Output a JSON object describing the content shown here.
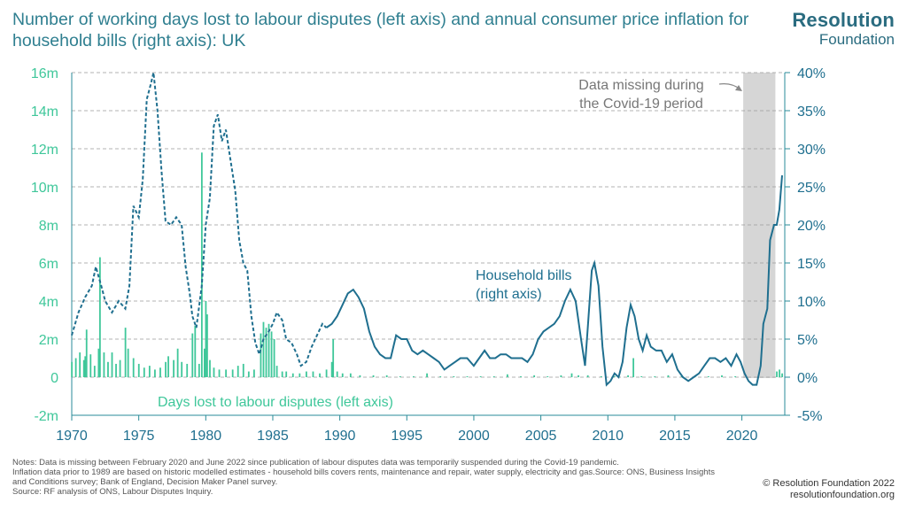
{
  "title": "Number of working days lost to labour disputes (left axis) and annual consumer price inflation for household bills (right axis): UK",
  "logo": {
    "line1": "Resolution",
    "line2": "Foundation"
  },
  "notes": [
    "Notes: Data is missing between February 2020 and June 2022 since publication of labour disputes data was temporarily suspended during the Covid-19 pandemic.",
    "Inflation data prior to 1989 are based on historic modelled estimates - household bills covers rents, maintenance and repair, water supply, electricity and gas.Source: ONS, Business Insights and Conditions survey; Bank of England, Decision Maker Panel survey.",
    "Source: RF analysis of ONS, Labour Disputes Inquiry."
  ],
  "credits": {
    "copyright": "© Resolution Foundation 2022",
    "url": "resolutionfoundation.org"
  },
  "colors": {
    "title": "#2f7f90",
    "bills": "#1f6f8f",
    "days": "#3fc79a",
    "axis": "#2a8b98",
    "covid": "#d6d6d6"
  },
  "chart_data": {
    "type": "bar+line",
    "x_ticks": [
      "1970",
      "1975",
      "1980",
      "1985",
      "1990",
      "1995",
      "2000",
      "2005",
      "2010",
      "2015",
      "2020"
    ],
    "x_range": [
      1970,
      2023.2
    ],
    "left_ticks": [
      "-2m",
      "0",
      "2m",
      "4m",
      "6m",
      "8m",
      "10m",
      "12m",
      "14m",
      "16m"
    ],
    "left_range": [
      -2,
      16
    ],
    "right_ticks": [
      "-5%",
      "0%",
      "5%",
      "10%",
      "15%",
      "20%",
      "25%",
      "30%",
      "35%",
      "40%"
    ],
    "right_range": [
      -5,
      40
    ],
    "grid": true,
    "covid_band": {
      "start": 2020.1,
      "end": 2022.5,
      "label_line1": "Data missing during",
      "label_line2": "the Covid-19 period"
    },
    "series": [
      {
        "name": "Household bills (right axis)",
        "label_line1": "Household bills",
        "label_line2": "(right axis)",
        "axis": "right",
        "style": "dashed_until_1989_then_solid",
        "solid_from": 1989,
        "points": [
          [
            1970.0,
            5.5
          ],
          [
            1970.5,
            8.5
          ],
          [
            1971.0,
            10.5
          ],
          [
            1971.5,
            12
          ],
          [
            1971.8,
            14.5
          ],
          [
            1972.2,
            12
          ],
          [
            1972.5,
            10
          ],
          [
            1973.0,
            8.5
          ],
          [
            1973.5,
            10
          ],
          [
            1974.0,
            9
          ],
          [
            1974.3,
            12
          ],
          [
            1974.6,
            22.5
          ],
          [
            1975.0,
            21
          ],
          [
            1975.3,
            26
          ],
          [
            1975.6,
            36.5
          ],
          [
            1975.9,
            38.5
          ],
          [
            1976.1,
            40
          ],
          [
            1976.4,
            35
          ],
          [
            1976.7,
            27
          ],
          [
            1977.0,
            20.5
          ],
          [
            1977.4,
            20
          ],
          [
            1977.8,
            21
          ],
          [
            1978.2,
            20
          ],
          [
            1978.5,
            14.5
          ],
          [
            1978.8,
            11
          ],
          [
            1979.0,
            8
          ],
          [
            1979.3,
            6.5
          ],
          [
            1979.7,
            12
          ],
          [
            1980.0,
            20
          ],
          [
            1980.3,
            23.5
          ],
          [
            1980.6,
            33
          ],
          [
            1980.9,
            34.5
          ],
          [
            1981.2,
            31
          ],
          [
            1981.5,
            32.5
          ],
          [
            1981.8,
            29
          ],
          [
            1982.2,
            24.5
          ],
          [
            1982.5,
            18
          ],
          [
            1982.8,
            15
          ],
          [
            1983.1,
            14
          ],
          [
            1983.4,
            8
          ],
          [
            1983.7,
            4.5
          ],
          [
            1984.0,
            3
          ],
          [
            1984.3,
            5
          ],
          [
            1984.7,
            6
          ],
          [
            1985.0,
            7
          ],
          [
            1985.3,
            8.5
          ],
          [
            1985.7,
            7.5
          ],
          [
            1986.0,
            5
          ],
          [
            1986.4,
            4.5
          ],
          [
            1986.8,
            3
          ],
          [
            1987.1,
            1.5
          ],
          [
            1987.5,
            2
          ],
          [
            1987.9,
            4
          ],
          [
            1988.3,
            5.5
          ],
          [
            1988.7,
            7
          ],
          [
            1989.0,
            6.5
          ],
          [
            1989.4,
            7
          ],
          [
            1989.8,
            8
          ],
          [
            1990.2,
            9.5
          ],
          [
            1990.6,
            11
          ],
          [
            1991.0,
            11.5
          ],
          [
            1991.4,
            10.5
          ],
          [
            1991.8,
            9
          ],
          [
            1992.2,
            6
          ],
          [
            1992.6,
            4
          ],
          [
            1993.0,
            3
          ],
          [
            1993.4,
            2.5
          ],
          [
            1993.8,
            2.5
          ],
          [
            1994.2,
            5.5
          ],
          [
            1994.6,
            5
          ],
          [
            1995.0,
            5
          ],
          [
            1995.4,
            3.5
          ],
          [
            1995.8,
            3
          ],
          [
            1996.2,
            3.5
          ],
          [
            1996.6,
            3
          ],
          [
            1997.0,
            2.5
          ],
          [
            1997.4,
            2
          ],
          [
            1997.8,
            1
          ],
          [
            1998.2,
            1.5
          ],
          [
            1998.6,
            2
          ],
          [
            1999.0,
            2.5
          ],
          [
            1999.5,
            2.5
          ],
          [
            2000.0,
            1.5
          ],
          [
            2000.4,
            2.5
          ],
          [
            2000.8,
            3.5
          ],
          [
            2001.2,
            2.5
          ],
          [
            2001.6,
            2.5
          ],
          [
            2002.0,
            3
          ],
          [
            2002.4,
            3
          ],
          [
            2002.8,
            2.5
          ],
          [
            2003.2,
            2.5
          ],
          [
            2003.6,
            2.5
          ],
          [
            2004.0,
            2
          ],
          [
            2004.4,
            3
          ],
          [
            2004.8,
            5
          ],
          [
            2005.2,
            6
          ],
          [
            2005.6,
            6.5
          ],
          [
            2006.0,
            7
          ],
          [
            2006.4,
            8
          ],
          [
            2006.8,
            10
          ],
          [
            2007.2,
            11.5
          ],
          [
            2007.6,
            10
          ],
          [
            2008.0,
            5
          ],
          [
            2008.3,
            1.5
          ],
          [
            2008.5,
            6.5
          ],
          [
            2008.8,
            14
          ],
          [
            2009.0,
            15
          ],
          [
            2009.3,
            12
          ],
          [
            2009.6,
            4
          ],
          [
            2009.9,
            -1
          ],
          [
            2010.2,
            -0.5
          ],
          [
            2010.5,
            0.5
          ],
          [
            2010.8,
            0
          ],
          [
            2011.1,
            2
          ],
          [
            2011.4,
            6.5
          ],
          [
            2011.7,
            9.5
          ],
          [
            2012.0,
            8
          ],
          [
            2012.3,
            5
          ],
          [
            2012.6,
            3.5
          ],
          [
            2012.9,
            5.5
          ],
          [
            2013.2,
            4
          ],
          [
            2013.6,
            3.5
          ],
          [
            2014.0,
            3.5
          ],
          [
            2014.4,
            2
          ],
          [
            2014.8,
            3
          ],
          [
            2015.2,
            1
          ],
          [
            2015.6,
            0
          ],
          [
            2016.0,
            -0.5
          ],
          [
            2016.4,
            0
          ],
          [
            2016.8,
            0.5
          ],
          [
            2017.2,
            1.5
          ],
          [
            2017.6,
            2.5
          ],
          [
            2018.0,
            2.5
          ],
          [
            2018.4,
            2
          ],
          [
            2018.8,
            2.5
          ],
          [
            2019.2,
            1.5
          ],
          [
            2019.6,
            3
          ],
          [
            2019.9,
            2
          ],
          [
            2020.2,
            0.5
          ],
          [
            2020.5,
            -0.5
          ],
          [
            2020.8,
            -1
          ],
          [
            2021.1,
            -1
          ],
          [
            2021.4,
            1.5
          ],
          [
            2021.6,
            7
          ],
          [
            2021.9,
            9
          ],
          [
            2022.1,
            18
          ],
          [
            2022.4,
            20
          ],
          [
            2022.6,
            20
          ],
          [
            2022.8,
            22
          ],
          [
            2023.0,
            26.5
          ]
        ]
      },
      {
        "name": "Days lost to labour disputes (left axis)",
        "label": "Days lost to labour disputes (left axis)",
        "axis": "left",
        "style": "monthly_bars",
        "points": [
          [
            1970.0,
            0.8
          ],
          [
            1970.3,
            1.0
          ],
          [
            1970.6,
            1.3
          ],
          [
            1970.9,
            0.9
          ],
          [
            1971.0,
            1.1
          ],
          [
            1971.1,
            2.5
          ],
          [
            1971.4,
            1.2
          ],
          [
            1971.7,
            0.6
          ],
          [
            1972.0,
            1.5
          ],
          [
            1972.1,
            6.3
          ],
          [
            1972.4,
            1.3
          ],
          [
            1972.7,
            0.8
          ],
          [
            1973.0,
            1.3
          ],
          [
            1973.3,
            0.7
          ],
          [
            1973.6,
            0.9
          ],
          [
            1974.0,
            2.6
          ],
          [
            1974.2,
            1.5
          ],
          [
            1974.6,
            1.0
          ],
          [
            1975.0,
            0.7
          ],
          [
            1975.4,
            0.5
          ],
          [
            1975.8,
            0.6
          ],
          [
            1976.2,
            0.4
          ],
          [
            1976.6,
            0.5
          ],
          [
            1977.0,
            0.8
          ],
          [
            1977.2,
            1.1
          ],
          [
            1977.6,
            0.9
          ],
          [
            1977.9,
            1.5
          ],
          [
            1978.2,
            0.8
          ],
          [
            1978.6,
            0.7
          ],
          [
            1979.0,
            2.3
          ],
          [
            1979.2,
            2.7
          ],
          [
            1979.5,
            0.7
          ],
          [
            1979.7,
            11.8
          ],
          [
            1979.9,
            1.5
          ],
          [
            1980.0,
            4.0
          ],
          [
            1980.1,
            3.3
          ],
          [
            1980.3,
            0.9
          ],
          [
            1980.6,
            0.5
          ],
          [
            1981.0,
            0.4
          ],
          [
            1981.5,
            0.4
          ],
          [
            1982.0,
            0.4
          ],
          [
            1982.4,
            0.6
          ],
          [
            1982.8,
            0.7
          ],
          [
            1983.2,
            0.3
          ],
          [
            1983.6,
            0.4
          ],
          [
            1984.1,
            2.3
          ],
          [
            1984.3,
            2.9
          ],
          [
            1984.5,
            2.6
          ],
          [
            1984.7,
            2.8
          ],
          [
            1984.9,
            2.4
          ],
          [
            1985.1,
            2.0
          ],
          [
            1985.3,
            0.6
          ],
          [
            1985.7,
            0.3
          ],
          [
            1986.0,
            0.3
          ],
          [
            1986.5,
            0.2
          ],
          [
            1987.0,
            0.2
          ],
          [
            1987.5,
            0.3
          ],
          [
            1988.0,
            0.3
          ],
          [
            1988.5,
            0.2
          ],
          [
            1989.0,
            0.4
          ],
          [
            1989.4,
            0.8
          ],
          [
            1989.5,
            2.0
          ],
          [
            1989.8,
            0.3
          ],
          [
            1990.2,
            0.2
          ],
          [
            1990.8,
            0.2
          ],
          [
            1991.5,
            0.1
          ],
          [
            1992.5,
            0.1
          ],
          [
            1993.5,
            0.1
          ],
          [
            1994.5,
            0.05
          ],
          [
            1995.5,
            0.05
          ],
          [
            1996.5,
            0.2
          ],
          [
            1997.5,
            0.05
          ],
          [
            1998.5,
            0.05
          ],
          [
            1999.5,
            0.05
          ],
          [
            2000.5,
            0.05
          ],
          [
            2001.5,
            0.05
          ],
          [
            2002.5,
            0.15
          ],
          [
            2003.5,
            0.05
          ],
          [
            2004.5,
            0.1
          ],
          [
            2005.5,
            0.05
          ],
          [
            2006.5,
            0.1
          ],
          [
            2007.3,
            0.2
          ],
          [
            2007.8,
            0.1
          ],
          [
            2008.5,
            0.1
          ],
          [
            2009.5,
            0.05
          ],
          [
            2010.5,
            0.05
          ],
          [
            2011.5,
            0.1
          ],
          [
            2011.9,
            1.0
          ],
          [
            2012.5,
            0.05
          ],
          [
            2013.5,
            0.05
          ],
          [
            2014.5,
            0.1
          ],
          [
            2015.5,
            0.05
          ],
          [
            2016.5,
            0.05
          ],
          [
            2017.5,
            0.05
          ],
          [
            2018.5,
            0.1
          ],
          [
            2019.5,
            0.05
          ],
          [
            2022.6,
            0.3
          ],
          [
            2022.8,
            0.4
          ],
          [
            2023.0,
            0.2
          ]
        ]
      }
    ]
  }
}
